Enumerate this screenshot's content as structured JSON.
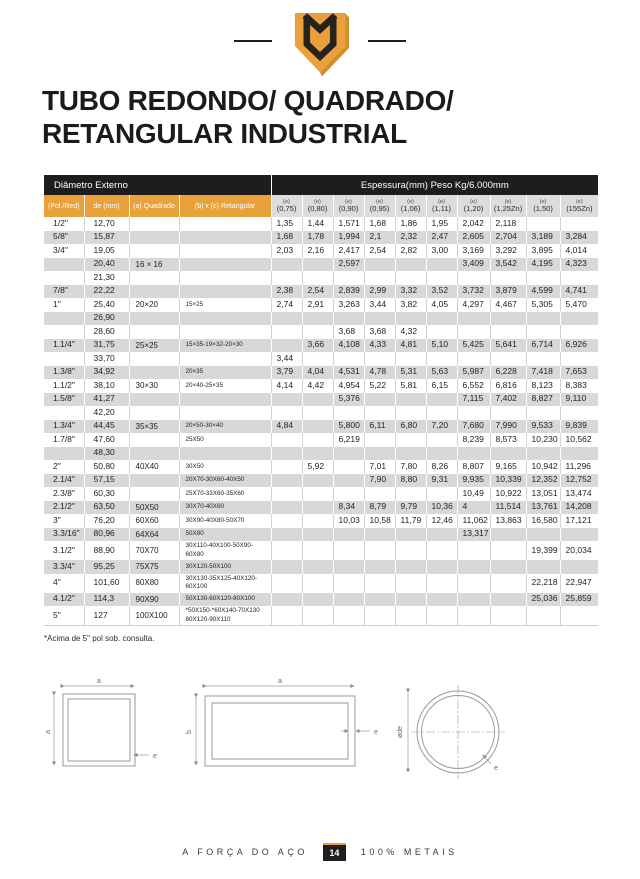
{
  "page": {
    "title_line1": "TUBO REDONDO/ QUADRADO/",
    "title_line2": "RETANGULAR INDUSTRIAL",
    "footnote": "*Acima de 5\" pol sob. consulta."
  },
  "colors": {
    "gold": "#E9A23B",
    "dark": "#1E1D1B",
    "zebra": "#D8D8D8",
    "subheader_gray": "#DCDCDC"
  },
  "table": {
    "group_headers": [
      "Diâmetro Externo",
      "Espessura(mm) Peso Kg/6.000mm"
    ],
    "dim_columns": [
      "(Pol./Red)",
      "de (mm)",
      "(a) Quadrado",
      "(b) x (c) Retangular"
    ],
    "thickness_sup": "(e)",
    "thickness_columns": [
      "(0,75)",
      "(0,80)",
      "(0,90)",
      "(0,95)",
      "(1,06)",
      "(1,11)",
      "(1,20)",
      "(1,25Zn)",
      "(1,50)",
      "(155Zn)"
    ],
    "rows": [
      [
        "1/2\"",
        "12,70",
        "",
        "",
        "1,35",
        "1,44",
        "1,571",
        "1,68",
        "1,86",
        "1,95",
        "2,042",
        "2,118",
        "",
        ""
      ],
      [
        "5/8\"",
        "15,87",
        "",
        "",
        "1,68",
        "1,78",
        "1,994",
        "2,1",
        "2,32",
        "2,47",
        "2,605",
        "2,704",
        "3,189",
        "3,284"
      ],
      [
        "3/4\"",
        "19,05",
        "",
        "",
        "2,03",
        "2,16",
        "2,417",
        "2,54",
        "2,82",
        "3,00",
        "3,169",
        "3,292",
        "3,895",
        "4,014"
      ],
      [
        "",
        "20,40",
        "16 × 16",
        "",
        "",
        "",
        "2,597",
        "",
        "",
        "",
        "3,409",
        "3,542",
        "4,195",
        "4,323"
      ],
      [
        "",
        "21,30",
        "",
        "",
        "",
        "",
        "",
        "",
        "",
        "",
        "",
        "",
        "",
        ""
      ],
      [
        "7/8\"",
        "22,22",
        "",
        "",
        "2,38",
        "2,54",
        "2,839",
        "2,99",
        "3,32",
        "3,52",
        "3,732",
        "3,879",
        "4,599",
        "4,741"
      ],
      [
        "1\"",
        "25,40",
        "20×20",
        "15×25",
        "2,74",
        "2,91",
        "3,263",
        "3,44",
        "3,82",
        "4,05",
        "4,297",
        "4,467",
        "5,305",
        "5,470"
      ],
      [
        "",
        "26,90",
        "",
        "",
        "",
        "",
        "",
        "",
        "",
        "",
        "",
        "",
        "",
        ""
      ],
      [
        "",
        "28,60",
        "",
        "",
        "",
        "",
        "3,68",
        "3,68",
        "4,32",
        "",
        "",
        "",
        "",
        ""
      ],
      [
        "1.1/4\"",
        "31,75",
        "25×25",
        "15×35-19×32-20×30",
        "",
        "3,66",
        "4,108",
        "4,33",
        "4,81",
        "5,10",
        "5,425",
        "5,641",
        "6,714",
        "6,926"
      ],
      [
        "",
        "33,70",
        "",
        "",
        "3,44",
        "",
        "",
        "",
        "",
        "",
        "",
        "",
        "",
        ""
      ],
      [
        "1.3/8\"",
        "34,92",
        "",
        "20×35",
        "3,79",
        "4,04",
        "4,531",
        "4,78",
        "5,31",
        "5,63",
        "5,987",
        "6,228",
        "7,418",
        "7,653"
      ],
      [
        "1.1/2\"",
        "38,10",
        "30×30",
        "20×40-25×35",
        "4,14",
        "4,42",
        "4,954",
        "5,22",
        "5,81",
        "6,15",
        "6,552",
        "6,816",
        "8,123",
        "8,383"
      ],
      [
        "1.5/8\"",
        "41,27",
        "",
        "",
        "",
        "",
        "5,376",
        "",
        "",
        "",
        "7,115",
        "7,402",
        "8,827",
        "9,110"
      ],
      [
        "",
        "42,20",
        "",
        "",
        "",
        "",
        "",
        "",
        "",
        "",
        "",
        "",
        "",
        ""
      ],
      [
        "1.3/4\"",
        "44,45",
        "35×35",
        "20×50-30×40",
        "4,84",
        "",
        "5,800",
        "6,11",
        "6,80",
        "7,20",
        "7,680",
        "7,990",
        "9,533",
        "9,839"
      ],
      [
        "1.7/8\"",
        "47,60",
        "",
        "25X50",
        "",
        "",
        "6,219",
        "",
        "",
        "",
        "8,239",
        "8,573",
        "10,230",
        "10,562"
      ],
      [
        "",
        "48,30",
        "",
        "",
        "",
        "",
        "",
        "",
        "",
        "",
        "",
        "",
        "",
        ""
      ],
      [
        "2\"",
        "50,80",
        "40X40",
        "30X50",
        "",
        "5,92",
        "",
        "7,01",
        "7,80",
        "8,26",
        "8,807",
        "9,165",
        "10,942",
        "11,296"
      ],
      [
        "2.1/4\"",
        "57,15",
        "",
        "20X70-30X60-40X50",
        "",
        "",
        "",
        "7,90",
        "8,80",
        "9,31",
        "9,935",
        "10,339",
        "12,352",
        "12,752"
      ],
      [
        "2.3/8\"",
        "60,30",
        "",
        "25X70-33X60-35X60",
        "",
        "",
        "",
        "",
        "",
        "",
        "10,49",
        "10,922",
        "13,051",
        "13,474"
      ],
      [
        "2.1/2\"",
        "63,50",
        "50X50",
        "30X70-40X60",
        "",
        "",
        "8,34",
        "8,79",
        "9,79",
        "10,36",
        "4",
        "11,514",
        "13,761",
        "14,208"
      ],
      [
        "3\"",
        "76,20",
        "60X60",
        "30X90-40X80-50X70",
        "",
        "",
        "10,03",
        "10,58",
        "11,79",
        "12,46",
        "11,062",
        "13,863",
        "16,580",
        "17,121"
      ],
      [
        "3.3/16\"",
        "80,96",
        "64X64",
        "50X80",
        "",
        "",
        "",
        "",
        "",
        "",
        "13,317",
        "",
        "",
        ""
      ],
      [
        "3.1/2\"",
        "88,90",
        "70X70",
        "30X110-40X100-50X90-60X80",
        "",
        "",
        "",
        "",
        "",
        "",
        "",
        "",
        "19,399",
        "20,034"
      ],
      [
        "3.3/4\"",
        "95,25",
        "75X75",
        "30X120-50X100",
        "",
        "",
        "",
        "",
        "",
        "",
        "",
        "",
        "",
        ""
      ],
      [
        "4\"",
        "101,60",
        "80X80",
        "30X130-35X125-40X120-60X100",
        "",
        "",
        "",
        "",
        "",
        "",
        "",
        "",
        "22,218",
        "22,947"
      ],
      [
        "4.1/2\"",
        "114,3",
        "90X90",
        "50X130-60X120-80X100",
        "",
        "",
        "",
        "",
        "",
        "",
        "",
        "",
        "25,036",
        "25,859"
      ],
      [
        "5\"",
        "127",
        "100X100",
        "*50X150-*60X140-70X130\n80X120-90X110",
        "",
        "",
        "",
        "",
        "",
        "",
        "",
        "",
        "",
        ""
      ]
    ]
  },
  "diagrams": {
    "square": {
      "top": "a",
      "left": "a",
      "thickness": "e"
    },
    "rectangle": {
      "top": "a",
      "left": "b",
      "thickness": "e"
    },
    "circle": {
      "diameter": "øde",
      "thickness": "e"
    }
  },
  "footer": {
    "left": "A FORÇA DO AÇO",
    "page_number": "14",
    "right": "100% METAIS"
  }
}
